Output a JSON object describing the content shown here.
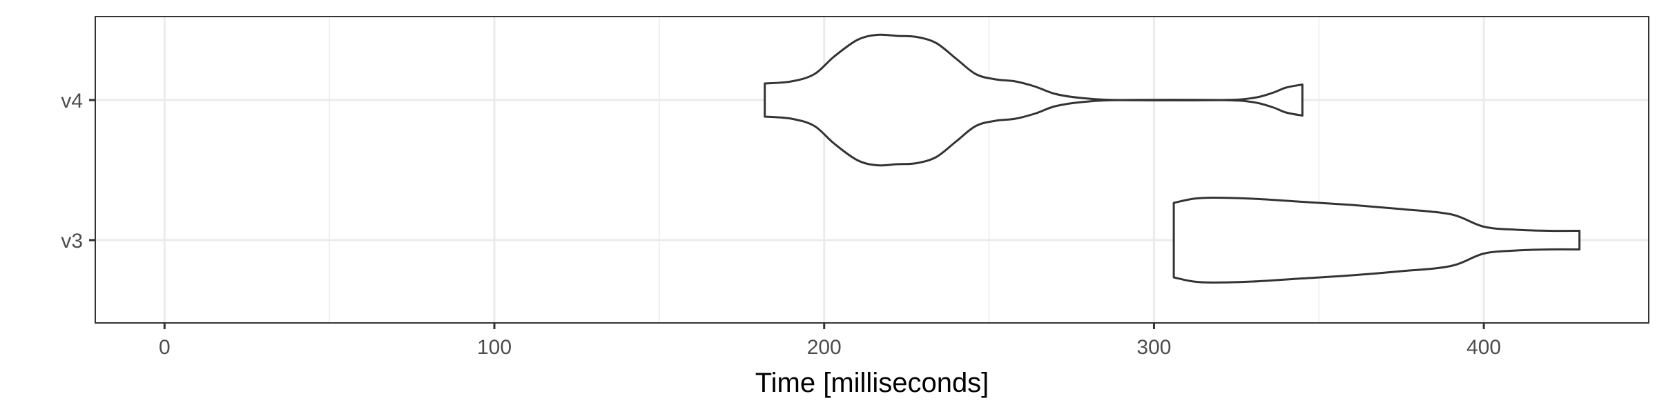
{
  "chart_data": {
    "type": "violin",
    "title": "",
    "xlabel": "Time [milliseconds]",
    "ylabel": "",
    "xlim": [
      -21,
      450
    ],
    "x_ticks": [
      0,
      100,
      200,
      300,
      400
    ],
    "x_minor_ticks": [
      50,
      150,
      250,
      350
    ],
    "categories": [
      "v3",
      "v4"
    ],
    "grid": true,
    "colors": {
      "outline": "#333333",
      "fill": "#ffffff",
      "grid": "#ebebeb"
    },
    "series": [
      {
        "category": "v4",
        "density": [
          [
            182,
            0.16
          ],
          [
            190,
            0.18
          ],
          [
            197,
            0.25
          ],
          [
            203,
            0.42
          ],
          [
            210,
            0.58
          ],
          [
            216,
            0.63
          ],
          [
            222,
            0.62
          ],
          [
            228,
            0.61
          ],
          [
            234,
            0.55
          ],
          [
            240,
            0.4
          ],
          [
            246,
            0.25
          ],
          [
            252,
            0.2
          ],
          [
            258,
            0.18
          ],
          [
            264,
            0.13
          ],
          [
            270,
            0.06
          ],
          [
            278,
            0.02
          ],
          [
            290,
            0.0
          ],
          [
            320,
            0.0
          ],
          [
            330,
            0.02
          ],
          [
            336,
            0.07
          ],
          [
            340,
            0.12
          ],
          [
            345,
            0.15
          ]
        ]
      },
      {
        "category": "v3",
        "density": [
          [
            306,
            0.36
          ],
          [
            312,
            0.4
          ],
          [
            318,
            0.41
          ],
          [
            330,
            0.4
          ],
          [
            345,
            0.37
          ],
          [
            360,
            0.34
          ],
          [
            375,
            0.3
          ],
          [
            390,
            0.25
          ],
          [
            400,
            0.13
          ],
          [
            410,
            0.1
          ],
          [
            420,
            0.09
          ],
          [
            429,
            0.09
          ]
        ]
      }
    ]
  }
}
